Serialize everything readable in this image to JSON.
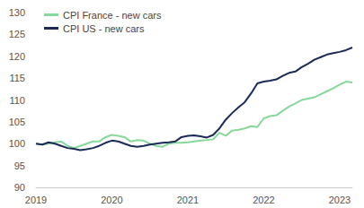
{
  "chart_data": {
    "type": "line",
    "categories": [
      "2019",
      null,
      null,
      null,
      null,
      null,
      null,
      null,
      null,
      null,
      null,
      null,
      "2020",
      null,
      null,
      null,
      null,
      null,
      null,
      null,
      null,
      null,
      null,
      null,
      "2021",
      null,
      null,
      null,
      null,
      null,
      null,
      null,
      null,
      null,
      null,
      null,
      "2022",
      null,
      null,
      null,
      null,
      null,
      null,
      null,
      null,
      null,
      null,
      null,
      "2023",
      null,
      null
    ],
    "series": [
      {
        "name": "CPI France - new cars",
        "color": "#86d89b",
        "values": [
          100,
          99.8,
          100,
          100.3,
          100.5,
          99.5,
          99,
          99.5,
          100,
          100.5,
          100.5,
          101.5,
          102,
          101.8,
          101.5,
          100.5,
          100.8,
          100.7,
          100,
          99.5,
          99.3,
          100,
          100.2,
          100.2,
          100.3,
          100.5,
          100.7,
          100.8,
          101,
          102.5,
          101.8,
          103,
          103.2,
          103.5,
          104,
          103.8,
          105.8,
          106.3,
          106.5,
          107.5,
          108.5,
          109.2,
          110,
          110.3,
          110.6,
          111.3,
          112,
          112.7,
          113.5,
          114.2,
          114
        ]
      },
      {
        "name": "CPI US - new cars",
        "color": "#1b2a57",
        "values": [
          100,
          99.8,
          100.3,
          100,
          99.5,
          99,
          98.8,
          98.5,
          98.7,
          99,
          99.5,
          100.2,
          100.7,
          100.5,
          100,
          99.5,
          99.3,
          99.5,
          99.8,
          100,
          100.2,
          100.3,
          100.5,
          101.5,
          101.8,
          101.9,
          101.7,
          101.4,
          102,
          103.5,
          105.5,
          107,
          108.3,
          109.5,
          111.5,
          113.8,
          114.2,
          114.4,
          114.7,
          115.5,
          116.2,
          116.5,
          117.5,
          118.3,
          119.2,
          119.8,
          120.4,
          120.7,
          121,
          121.4,
          122
        ]
      }
    ],
    "ylim": [
      90,
      130
    ],
    "yticks": [
      90,
      95,
      100,
      105,
      110,
      115,
      120,
      125,
      130
    ],
    "grid": false,
    "legend": "upper left"
  }
}
